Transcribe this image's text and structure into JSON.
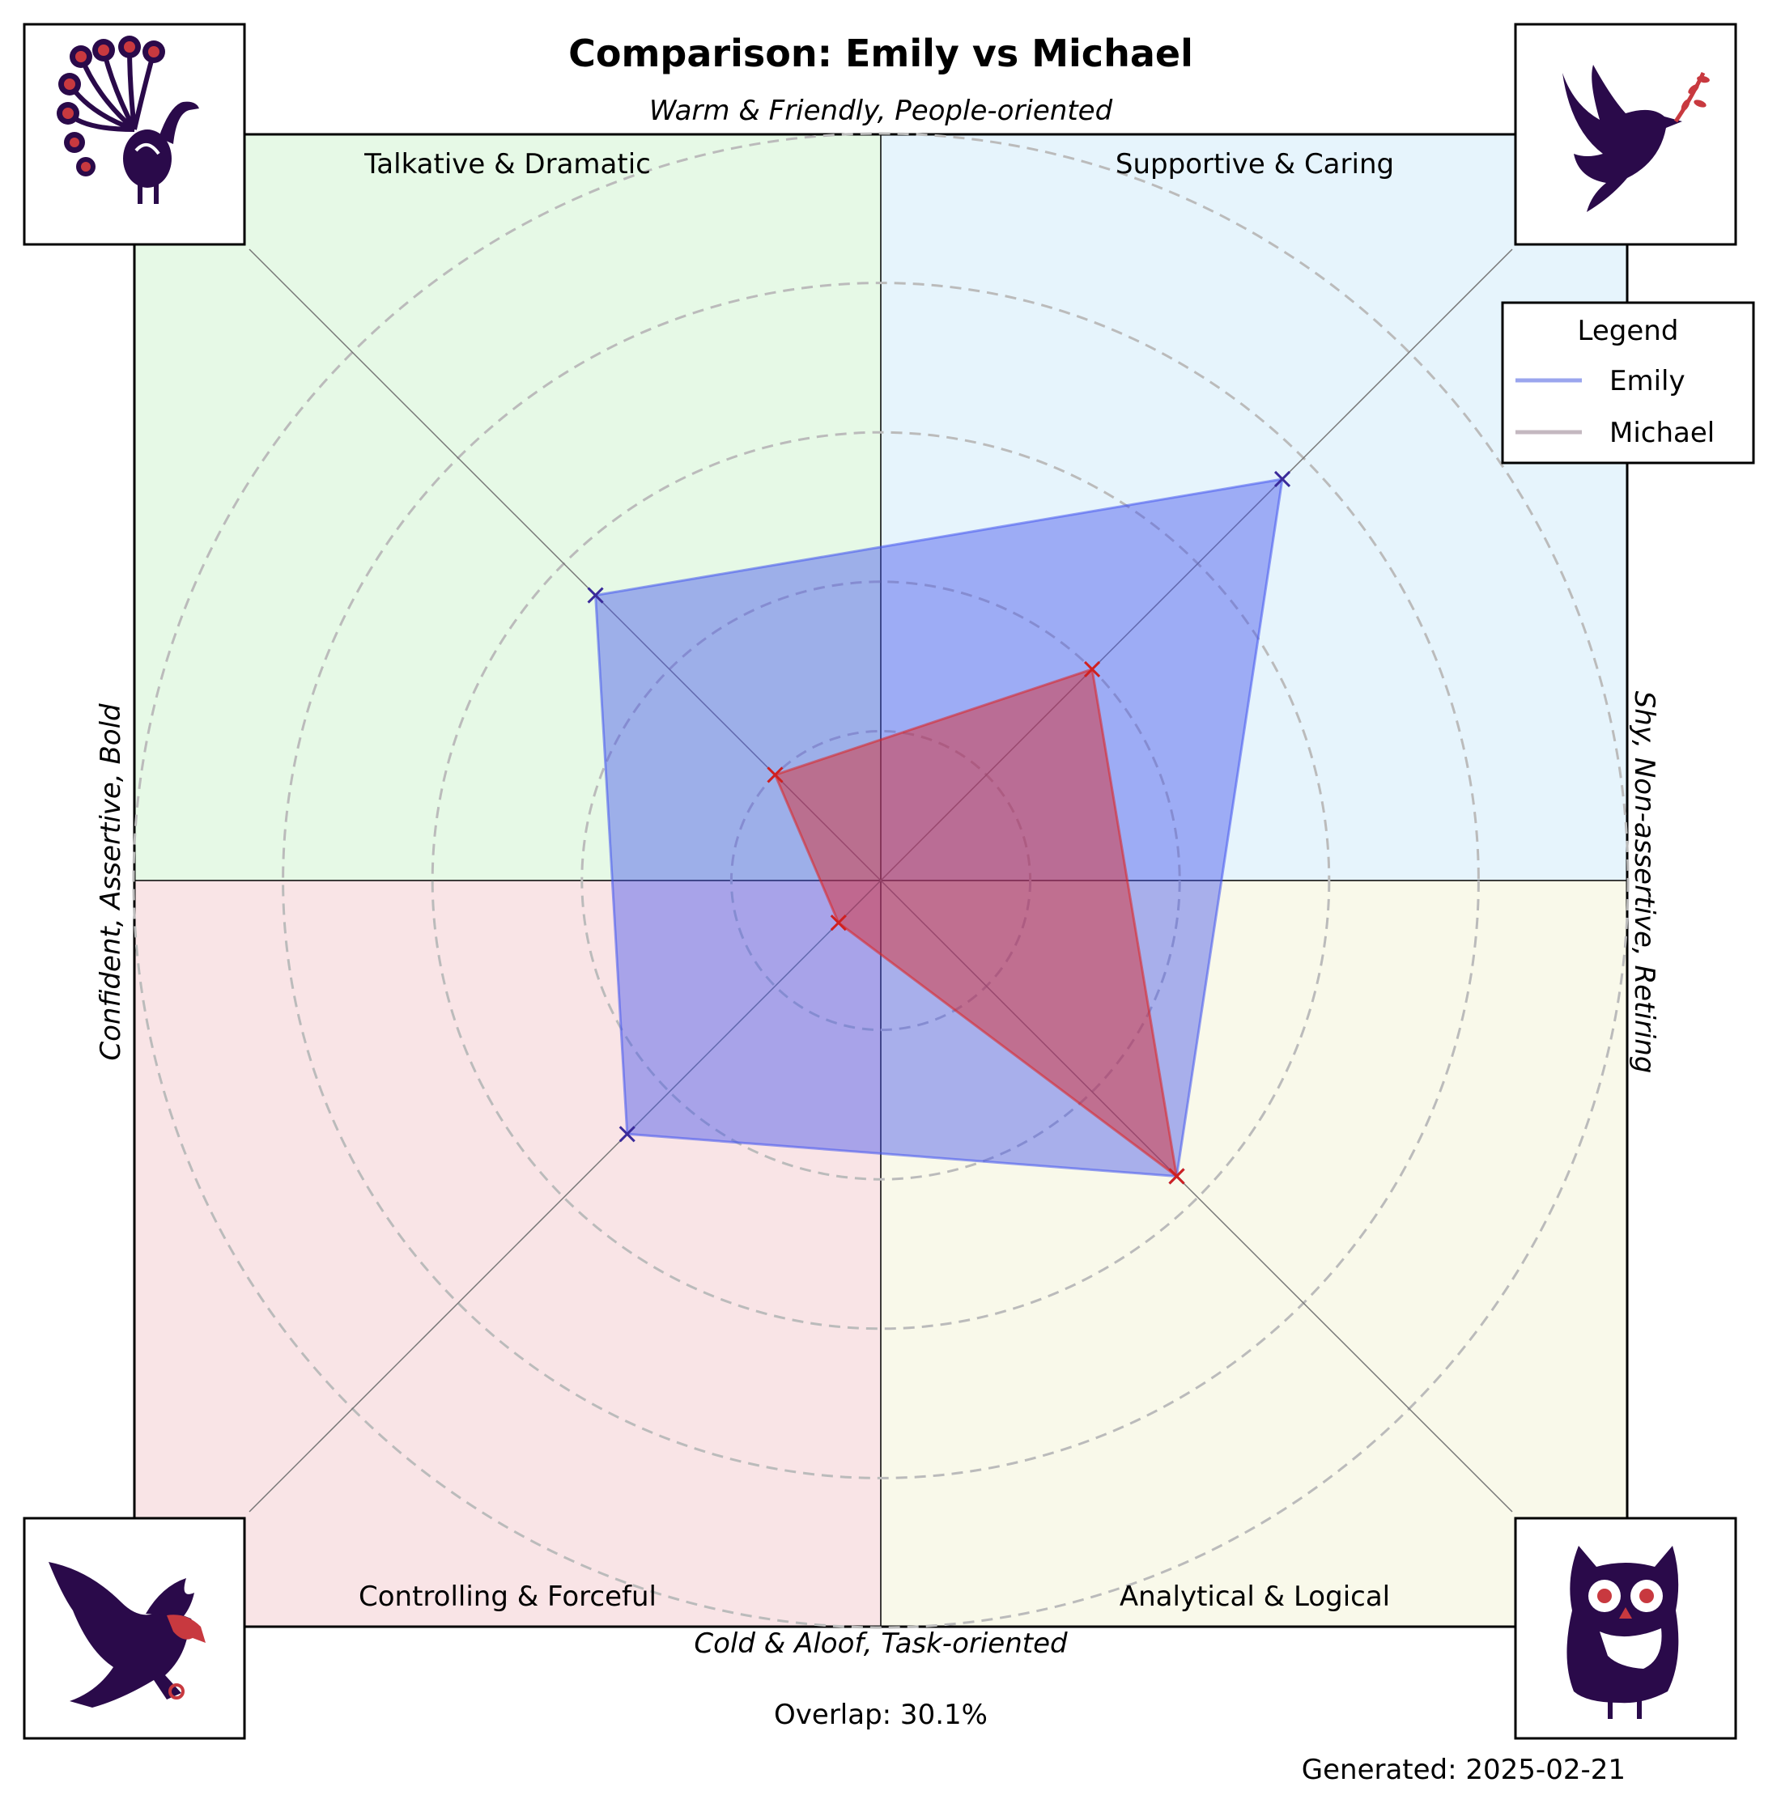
{
  "chart_data": {
    "type": "radar",
    "title": "Comparison: Emily vs Michael",
    "axis_labels": {
      "top": "Warm & Friendly, People-oriented",
      "bottom": "Cold & Aloof, Task-oriented",
      "left": "Confident, Assertive, Bold",
      "right": "Shy, Non-assertive, Retiring"
    },
    "quadrants": [
      {
        "position": "top-left",
        "label": "Talkative & Dramatic",
        "color": "#e6f9e6",
        "icon": "peacock-icon"
      },
      {
        "position": "top-right",
        "label": "Supportive & Caring",
        "color": "#e6f4fc",
        "icon": "dove-icon"
      },
      {
        "position": "bottom-left",
        "label": "Controlling & Forceful",
        "color": "#f9e4e6",
        "icon": "eagle-icon"
      },
      {
        "position": "bottom-right",
        "label": "Analytical & Logical",
        "color": "#f9f9ea",
        "icon": "owl-icon"
      }
    ],
    "axes_order": [
      "Supportive & Caring",
      "Talkative & Dramatic",
      "Controlling & Forceful",
      "Analytical & Logical"
    ],
    "rlim": [
      0,
      5
    ],
    "grid": "dashed concentric circles",
    "series": [
      {
        "name": "Emily",
        "color": "#4455ee",
        "legend_color": "#9aa5ee",
        "values": [
          3.8,
          2.7,
          2.4,
          2.8
        ]
      },
      {
        "name": "Michael",
        "color": "#dd2222",
        "legend_color": "#c4b8c0",
        "values": [
          2.0,
          1.0,
          0.4,
          2.8
        ]
      }
    ],
    "legend": {
      "title": "Legend",
      "placement": "top-right"
    },
    "annotation": "Overlap: 30.1%",
    "footer": "Generated: 2025-02-21",
    "icon_colors": {
      "dark": "#2a0a4a",
      "accent": "#c8393f"
    }
  }
}
